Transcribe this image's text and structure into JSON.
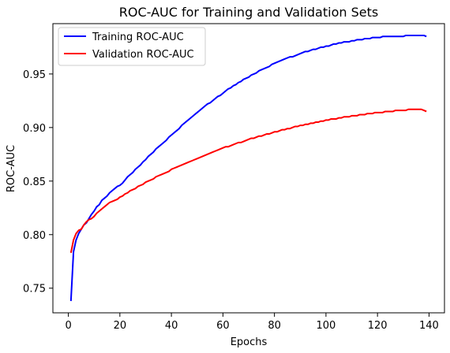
{
  "chart_data": {
    "type": "line",
    "title": "ROC-AUC for Training and Validation Sets",
    "xlabel": "Epochs",
    "ylabel": "ROC-AUC",
    "xlim": [
      -6,
      146
    ],
    "ylim": [
      0.727,
      0.997
    ],
    "xticks": [
      0,
      20,
      40,
      60,
      80,
      100,
      120,
      140
    ],
    "yticks": [
      0.75,
      0.8,
      0.85,
      0.9,
      0.95
    ],
    "ytick_labels": [
      "0.75",
      "0.80",
      "0.85",
      "0.90",
      "0.95"
    ],
    "grid": false,
    "legend": "top-left",
    "x": [
      1,
      2,
      3,
      4,
      5,
      6,
      7,
      8,
      9,
      10,
      11,
      12,
      13,
      14,
      15,
      16,
      17,
      18,
      19,
      20,
      21,
      22,
      23,
      24,
      25,
      26,
      27,
      28,
      29,
      30,
      31,
      32,
      33,
      34,
      35,
      36,
      37,
      38,
      39,
      40,
      41,
      42,
      43,
      44,
      45,
      46,
      47,
      48,
      49,
      50,
      51,
      52,
      53,
      54,
      55,
      56,
      57,
      58,
      59,
      60,
      61,
      62,
      63,
      64,
      65,
      66,
      67,
      68,
      69,
      70,
      71,
      72,
      73,
      74,
      75,
      76,
      77,
      78,
      79,
      80,
      81,
      82,
      83,
      84,
      85,
      86,
      87,
      88,
      89,
      90,
      91,
      92,
      93,
      94,
      95,
      96,
      97,
      98,
      99,
      100,
      101,
      102,
      103,
      104,
      105,
      106,
      107,
      108,
      109,
      110,
      111,
      112,
      113,
      114,
      115,
      116,
      117,
      118,
      119,
      120,
      121,
      122,
      123,
      124,
      125,
      126,
      127,
      128,
      129,
      130,
      131,
      132,
      133,
      134,
      135,
      136,
      137,
      138,
      139
    ],
    "series": [
      {
        "name": "Training ROC-AUC",
        "color": "#0000ff",
        "values": [
          0.738,
          0.784,
          0.795,
          0.801,
          0.805,
          0.809,
          0.811,
          0.815,
          0.819,
          0.822,
          0.826,
          0.828,
          0.832,
          0.834,
          0.836,
          0.839,
          0.841,
          0.843,
          0.845,
          0.846,
          0.848,
          0.851,
          0.854,
          0.856,
          0.858,
          0.861,
          0.863,
          0.865,
          0.868,
          0.87,
          0.873,
          0.875,
          0.877,
          0.88,
          0.882,
          0.884,
          0.886,
          0.888,
          0.891,
          0.893,
          0.895,
          0.897,
          0.899,
          0.902,
          0.904,
          0.906,
          0.908,
          0.91,
          0.912,
          0.914,
          0.916,
          0.918,
          0.92,
          0.922,
          0.923,
          0.925,
          0.927,
          0.929,
          0.93,
          0.932,
          0.934,
          0.936,
          0.937,
          0.939,
          0.94,
          0.942,
          0.943,
          0.945,
          0.946,
          0.947,
          0.949,
          0.95,
          0.951,
          0.953,
          0.954,
          0.955,
          0.956,
          0.957,
          0.959,
          0.96,
          0.961,
          0.962,
          0.963,
          0.964,
          0.965,
          0.966,
          0.966,
          0.967,
          0.968,
          0.969,
          0.97,
          0.971,
          0.971,
          0.972,
          0.973,
          0.973,
          0.974,
          0.975,
          0.975,
          0.976,
          0.976,
          0.977,
          0.978,
          0.978,
          0.979,
          0.979,
          0.98,
          0.98,
          0.98,
          0.981,
          0.981,
          0.982,
          0.982,
          0.982,
          0.983,
          0.983,
          0.983,
          0.984,
          0.984,
          0.984,
          0.984,
          0.985,
          0.985,
          0.985,
          0.985,
          0.985,
          0.985,
          0.985,
          0.985,
          0.985,
          0.986,
          0.986,
          0.986,
          0.986,
          0.986,
          0.986,
          0.986,
          0.986,
          0.985
        ]
      },
      {
        "name": "Validation ROC-AUC",
        "color": "#ff0000",
        "values": [
          0.783,
          0.795,
          0.801,
          0.804,
          0.805,
          0.809,
          0.812,
          0.814,
          0.815,
          0.817,
          0.82,
          0.822,
          0.824,
          0.826,
          0.828,
          0.83,
          0.831,
          0.832,
          0.833,
          0.835,
          0.836,
          0.838,
          0.839,
          0.841,
          0.842,
          0.843,
          0.845,
          0.846,
          0.847,
          0.849,
          0.85,
          0.851,
          0.852,
          0.854,
          0.855,
          0.856,
          0.857,
          0.858,
          0.859,
          0.861,
          0.862,
          0.863,
          0.864,
          0.865,
          0.866,
          0.867,
          0.868,
          0.869,
          0.87,
          0.871,
          0.872,
          0.873,
          0.874,
          0.875,
          0.876,
          0.877,
          0.878,
          0.879,
          0.88,
          0.881,
          0.882,
          0.882,
          0.883,
          0.884,
          0.885,
          0.886,
          0.886,
          0.887,
          0.888,
          0.889,
          0.89,
          0.89,
          0.891,
          0.892,
          0.892,
          0.893,
          0.894,
          0.894,
          0.895,
          0.896,
          0.896,
          0.897,
          0.898,
          0.898,
          0.899,
          0.899,
          0.9,
          0.901,
          0.901,
          0.902,
          0.902,
          0.903,
          0.903,
          0.904,
          0.904,
          0.905,
          0.905,
          0.906,
          0.906,
          0.907,
          0.907,
          0.908,
          0.908,
          0.908,
          0.909,
          0.909,
          0.91,
          0.91,
          0.91,
          0.911,
          0.911,
          0.911,
          0.912,
          0.912,
          0.912,
          0.913,
          0.913,
          0.913,
          0.914,
          0.914,
          0.914,
          0.914,
          0.915,
          0.915,
          0.915,
          0.915,
          0.916,
          0.916,
          0.916,
          0.916,
          0.916,
          0.917,
          0.917,
          0.917,
          0.917,
          0.917,
          0.917,
          0.916,
          0.915
        ]
      }
    ]
  }
}
